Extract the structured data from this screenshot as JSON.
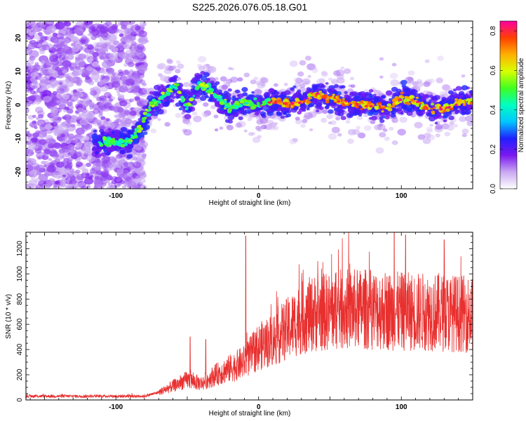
{
  "figure_title": "S225.2026.076.05.18.G01",
  "chart_data": [
    {
      "type": "heatmap",
      "name": "spectrogram",
      "xlabel": "Height of straight line (km)",
      "ylabel": "Frequency (Hz)",
      "xlim": [
        -163,
        150
      ],
      "ylim": [
        -25,
        25
      ],
      "xticks_labeled": [
        "-100",
        "0",
        "100"
      ],
      "yticks_labeled": [
        "20",
        "10",
        "0",
        "-10",
        "-20"
      ],
      "colorbar": {
        "label": "Normalized spectral amplitude",
        "range": [
          0.0,
          0.85
        ],
        "ticks": [
          "0.0",
          "0.2",
          "0.4",
          "0.6",
          "0.8"
        ],
        "colors": [
          "#ffffff",
          "#c9a8f2",
          "#7a18f0",
          "#2020ff",
          "#00c8ff",
          "#00ffc0",
          "#40ff20",
          "#d8ff00",
          "#ffb000",
          "#ff4000",
          "#ff00a0"
        ]
      },
      "ridge": {
        "description_points_x": [
          -110,
          -100,
          -90,
          -82,
          -75,
          -65,
          -58,
          -50,
          -42,
          -35,
          -28,
          -20,
          -10,
          0,
          10,
          20,
          30,
          40,
          50,
          60,
          70,
          80,
          90,
          100,
          110,
          120,
          130,
          140,
          150
        ],
        "description_points_y": [
          -11,
          -11,
          -11,
          -6,
          0,
          3,
          6,
          -1,
          6,
          5,
          2,
          -1,
          1,
          0,
          1,
          0,
          1,
          3,
          2,
          1,
          0,
          0,
          -1,
          2,
          1,
          -1,
          -1,
          1,
          1
        ]
      }
    },
    {
      "type": "line",
      "name": "snr",
      "xlabel": "Height of straight line (km)",
      "ylabel": "SNR (10 * v/v)",
      "xlim": [
        -163,
        150
      ],
      "ylim": [
        0,
        1330
      ],
      "xticks_labeled": [
        "-100",
        "0",
        "100"
      ],
      "yticks_labeled": [
        "0",
        "200",
        "400",
        "600",
        "800",
        "1000",
        "1200"
      ],
      "color": "#e8302f",
      "envelope_x": [
        -163,
        -100,
        -80,
        -70,
        -60,
        -50,
        -40,
        -30,
        -20,
        -10,
        0,
        10,
        20,
        30,
        40,
        50,
        60,
        80,
        100,
        120,
        150
      ],
      "envelope_mean": [
        30,
        30,
        30,
        60,
        110,
        160,
        130,
        200,
        250,
        300,
        420,
        480,
        560,
        650,
        690,
        700,
        720,
        720,
        700,
        700,
        680
      ],
      "spikes": [
        {
          "x": -48,
          "y": 500
        },
        {
          "x": -37,
          "y": 480
        },
        {
          "x": -9,
          "y": 1300
        },
        {
          "x": 95,
          "y": 1330
        },
        {
          "x": 103,
          "y": 1310
        },
        {
          "x": 130,
          "y": 1270
        }
      ]
    }
  ]
}
